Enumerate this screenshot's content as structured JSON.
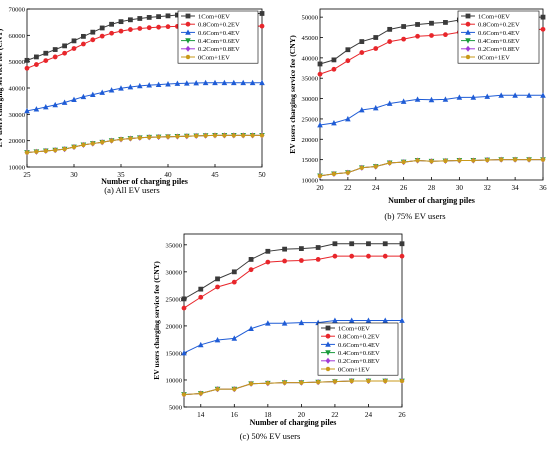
{
  "chart_data": [
    {
      "type": "line",
      "caption": "(a) All EV users",
      "xlabel": "Number of charging piles",
      "ylabel": "EV users charging service fee (CNY)",
      "xlim": [
        25,
        50
      ],
      "ylim": [
        10000,
        70000
      ],
      "xticks": [
        25,
        30,
        35,
        40,
        45,
        50
      ],
      "yticks": [
        10000,
        20000,
        30000,
        40000,
        50000,
        60000,
        70000
      ],
      "legend_position": "right",
      "x": [
        25,
        26,
        27,
        28,
        29,
        30,
        31,
        32,
        33,
        34,
        35,
        36,
        37,
        38,
        39,
        40,
        41,
        42,
        43,
        44,
        45,
        46,
        47,
        48,
        49,
        50
      ],
      "series": [
        {
          "name": "1Com+0EV",
          "color": "#3a3a3a",
          "marker": "square",
          "values": [
            50500,
            51800,
            53200,
            54600,
            56000,
            57900,
            59600,
            61200,
            62800,
            64200,
            65200,
            65900,
            66400,
            66800,
            67100,
            67400,
            67700,
            67900,
            68100,
            68200,
            68300,
            68300,
            68300,
            68300,
            68300,
            68300
          ]
        },
        {
          "name": "0.8Com+0.2EV",
          "color": "#e8262b",
          "marker": "circle",
          "values": [
            47500,
            48900,
            50400,
            51800,
            53200,
            55000,
            56700,
            58300,
            59700,
            60800,
            61600,
            62200,
            62600,
            62900,
            63100,
            63300,
            63400,
            63500,
            63500,
            63500,
            63500,
            63500,
            63500,
            63500,
            63500,
            63500
          ]
        },
        {
          "name": "0.6Com+0.4EV",
          "color": "#1f5cd6",
          "marker": "triangle-up",
          "values": [
            31300,
            32000,
            32800,
            33600,
            34500,
            35600,
            36700,
            37500,
            38300,
            39200,
            39900,
            40400,
            40800,
            41100,
            41300,
            41500,
            41700,
            41800,
            41900,
            42000,
            42000,
            42000,
            42000,
            42000,
            42000,
            42000
          ]
        },
        {
          "name": "0.4Com+0.6EV",
          "color": "#1a9b3c",
          "marker": "triangle-down",
          "values": [
            15500,
            15800,
            16100,
            16400,
            16800,
            17600,
            18400,
            18900,
            19400,
            20000,
            20500,
            20800,
            21100,
            21300,
            21400,
            21500,
            21600,
            21700,
            21800,
            21900,
            22000,
            22000,
            22000,
            22000,
            22000,
            22000
          ]
        },
        {
          "name": "0.2Com+0.8EV",
          "color": "#a33bd6",
          "marker": "diamond",
          "values": [
            15500,
            15800,
            16100,
            16400,
            16800,
            17600,
            18400,
            18900,
            19400,
            20000,
            20500,
            20800,
            21100,
            21300,
            21400,
            21500,
            21600,
            21700,
            21800,
            21900,
            22000,
            22000,
            22000,
            22000,
            22000,
            22000
          ]
        },
        {
          "name": "0Com+1EV",
          "color": "#c99a1b",
          "marker": "hexagon",
          "values": [
            15500,
            15800,
            16100,
            16400,
            16800,
            17600,
            18400,
            18900,
            19400,
            20000,
            20500,
            20800,
            21100,
            21300,
            21400,
            21500,
            21600,
            21700,
            21800,
            21900,
            22000,
            22000,
            22000,
            22000,
            22000,
            22000
          ]
        }
      ]
    },
    {
      "type": "line",
      "caption": "(b) 75% EV users",
      "xlabel": "Number of charging piles",
      "ylabel": "EV users charging service fee (CNY)",
      "xlim": [
        20,
        36
      ],
      "ylim": [
        10000,
        52000
      ],
      "xticks": [
        20,
        22,
        24,
        26,
        28,
        30,
        32,
        34,
        36
      ],
      "yticks": [
        10000,
        15000,
        20000,
        25000,
        30000,
        35000,
        40000,
        45000,
        50000
      ],
      "legend_position": "right",
      "x": [
        20,
        21,
        22,
        23,
        24,
        25,
        26,
        27,
        28,
        29,
        30,
        31,
        32,
        33,
        34,
        35,
        36
      ],
      "series": [
        {
          "name": "1Com+0EV",
          "color": "#3a3a3a",
          "marker": "square",
          "values": [
            38500,
            39500,
            42000,
            44000,
            45000,
            47000,
            47700,
            48200,
            48500,
            48700,
            49300,
            49500,
            50000,
            50000,
            50000,
            50000,
            50000
          ]
        },
        {
          "name": "0.8Com+0.2EV",
          "color": "#e8262b",
          "marker": "circle",
          "values": [
            36000,
            37200,
            39300,
            41300,
            42300,
            44000,
            44600,
            45300,
            45500,
            45700,
            46300,
            46500,
            47000,
            47000,
            47000,
            47000,
            47000
          ]
        },
        {
          "name": "0.6Com+0.4EV",
          "color": "#1f5cd6",
          "marker": "triangle-up",
          "values": [
            23500,
            24000,
            25000,
            27200,
            27700,
            28800,
            29300,
            29800,
            29700,
            29800,
            30300,
            30300,
            30500,
            30800,
            30800,
            30800,
            30800
          ]
        },
        {
          "name": "0.4Com+0.6EV",
          "color": "#1a9b3c",
          "marker": "triangle-down",
          "values": [
            11000,
            11500,
            11800,
            13000,
            13300,
            14200,
            14400,
            14800,
            14600,
            14700,
            14800,
            14800,
            14900,
            15000,
            15000,
            15000,
            15000
          ]
        },
        {
          "name": "0.2Com+0.8EV",
          "color": "#a33bd6",
          "marker": "diamond",
          "values": [
            11000,
            11500,
            11800,
            13000,
            13300,
            14200,
            14400,
            14800,
            14600,
            14700,
            14800,
            14800,
            14900,
            15000,
            15000,
            15000,
            15000
          ]
        },
        {
          "name": "0Com+1EV",
          "color": "#c99a1b",
          "marker": "hexagon",
          "values": [
            11000,
            11500,
            11800,
            13000,
            13300,
            14200,
            14400,
            14800,
            14600,
            14700,
            14800,
            14800,
            14900,
            15000,
            15000,
            15000,
            15000
          ]
        }
      ]
    },
    {
      "type": "line",
      "caption": "(c) 50% EV users",
      "xlabel": "Number of charging piles",
      "ylabel": "EV users charging service fee (CNY)",
      "xlim": [
        13,
        26
      ],
      "ylim": [
        5000,
        37000
      ],
      "xticks": [
        14,
        16,
        18,
        20,
        22,
        24,
        26
      ],
      "yticks": [
        5000,
        10000,
        15000,
        20000,
        25000,
        30000,
        35000
      ],
      "legend_position": "right",
      "x": [
        13,
        14,
        15,
        16,
        17,
        18,
        19,
        20,
        21,
        22,
        23,
        24,
        25,
        26
      ],
      "series": [
        {
          "name": "1Com+0EV",
          "color": "#3a3a3a",
          "marker": "square",
          "values": [
            25000,
            26800,
            28700,
            30000,
            32300,
            33800,
            34200,
            34300,
            34500,
            35200,
            35200,
            35200,
            35200,
            35200
          ]
        },
        {
          "name": "0.8Com+0.2EV",
          "color": "#e8262b",
          "marker": "circle",
          "values": [
            23300,
            25300,
            27200,
            28100,
            30400,
            31800,
            32000,
            32100,
            32300,
            32900,
            32900,
            32900,
            32900,
            32900
          ]
        },
        {
          "name": "0.6Com+0.4EV",
          "color": "#1f5cd6",
          "marker": "triangle-up",
          "values": [
            15000,
            16500,
            17400,
            17700,
            19500,
            20500,
            20500,
            20600,
            20600,
            21000,
            21000,
            21000,
            21000,
            21000
          ]
        },
        {
          "name": "0.4Com+0.6EV",
          "color": "#1a9b3c",
          "marker": "triangle-down",
          "values": [
            7300,
            7500,
            8300,
            8300,
            9300,
            9400,
            9500,
            9500,
            9600,
            9700,
            9800,
            9800,
            9800,
            9800
          ]
        },
        {
          "name": "0.2Com+0.8EV",
          "color": "#a33bd6",
          "marker": "diamond",
          "values": [
            7300,
            7500,
            8300,
            8300,
            9300,
            9400,
            9500,
            9500,
            9600,
            9700,
            9800,
            9800,
            9800,
            9800
          ]
        },
        {
          "name": "0Com+1EV",
          "color": "#c99a1b",
          "marker": "hexagon",
          "values": [
            7300,
            7500,
            8300,
            8300,
            9300,
            9400,
            9500,
            9500,
            9600,
            9700,
            9800,
            9800,
            9800,
            9800
          ]
        }
      ]
    }
  ]
}
